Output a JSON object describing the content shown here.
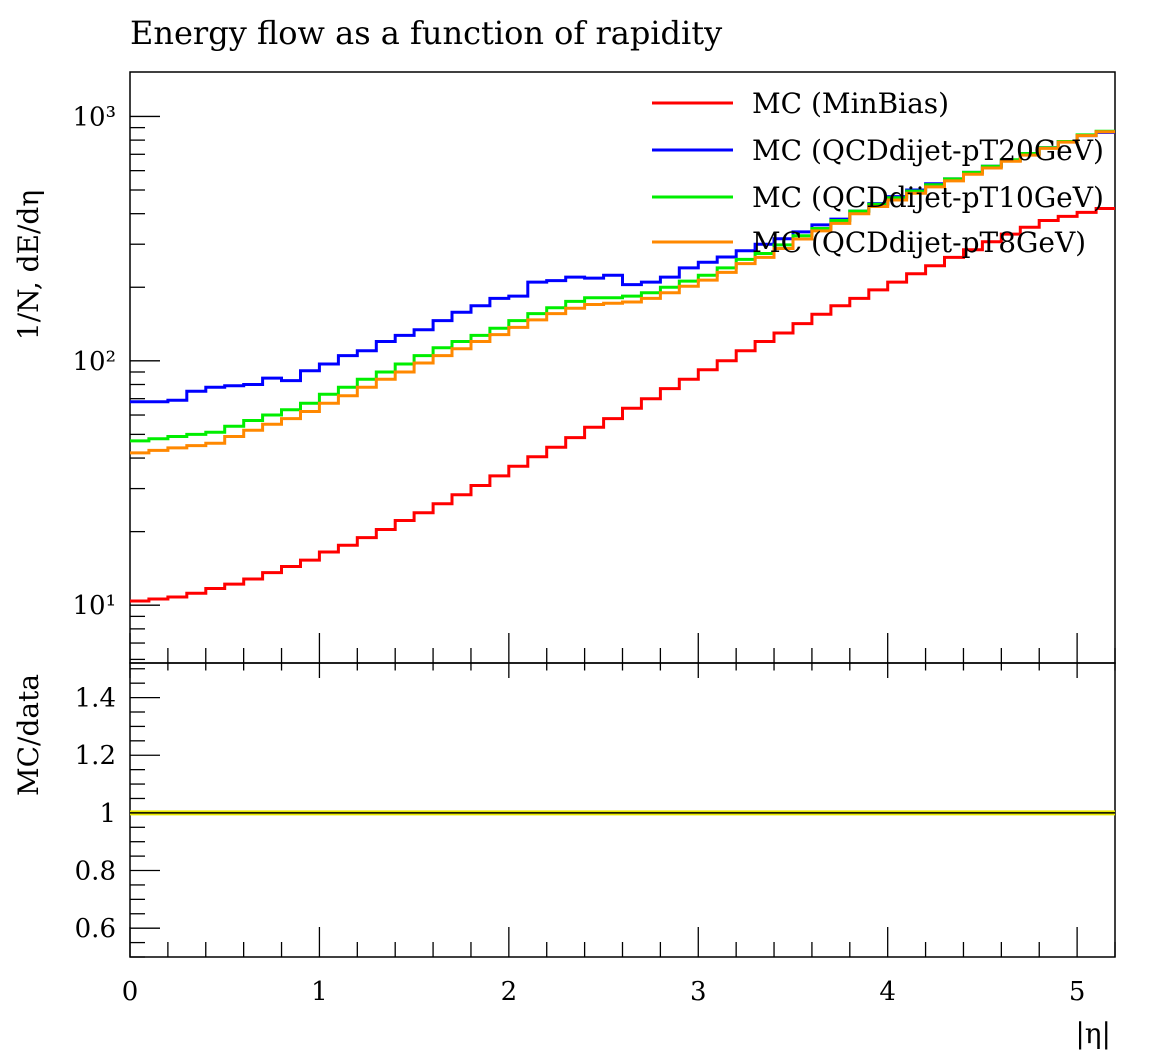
{
  "chart_data": {
    "type": "line",
    "title": "Energy flow as a function of rapidity",
    "main_panel": {
      "ylabel": "1/N, dE/dη",
      "yscale": "log",
      "ylim": [
        5.8,
        1520
      ],
      "ytick_labels": [
        "10¹",
        "10²",
        "10³"
      ],
      "ytick_values": [
        10,
        100,
        1000
      ]
    },
    "ratio_panel": {
      "ylabel": "MC/data",
      "ylim": [
        0.5,
        1.52
      ],
      "ytick_labels": [
        "0.6",
        "0.8",
        "1",
        "1.2",
        "1.4"
      ],
      "ytick_values": [
        0.6,
        0.8,
        1.0,
        1.2,
        1.4
      ],
      "band_value": 1.0,
      "band_color": "#e8e800"
    },
    "xlabel": "|η|",
    "xlim": [
      0,
      5.2
    ],
    "xtick_labels": [
      "0",
      "1",
      "2",
      "3",
      "4",
      "5"
    ],
    "xtick_values": [
      0,
      1,
      2,
      3,
      4,
      5
    ],
    "bin_width": 0.1,
    "legend_position": "top-right",
    "series": [
      {
        "name": "MC (MinBias)",
        "color": "#ff0000",
        "values": [
          10.4,
          10.6,
          10.8,
          11.2,
          11.7,
          12.2,
          12.8,
          13.6,
          14.4,
          15.3,
          16.5,
          17.6,
          18.9,
          20.4,
          22.2,
          23.9,
          26.0,
          28.3,
          30.9,
          33.8,
          37.0,
          40.5,
          44.3,
          48.5,
          53.5,
          58.0,
          64.0,
          70.0,
          77.0,
          84.0,
          92.0,
          100,
          110,
          120,
          130,
          142,
          155,
          168,
          180,
          195,
          210,
          227,
          245,
          265,
          285,
          307,
          330,
          352,
          375,
          390,
          405,
          420
        ]
      },
      {
        "name": "MC (QCDdijet-pT20GeV)",
        "color": "#0000ff",
        "values": [
          68,
          68,
          69,
          75,
          78,
          79,
          80,
          85,
          83,
          91,
          97,
          105,
          110,
          120,
          127,
          134,
          146,
          158,
          168,
          180,
          184,
          210,
          213,
          220,
          218,
          224,
          205,
          210,
          220,
          240,
          253,
          266,
          282,
          300,
          316,
          337,
          360,
          380,
          410,
          440,
          470,
          500,
          530,
          555,
          590,
          625,
          660,
          700,
          745,
          790,
          835,
          860
        ]
      },
      {
        "name": "MC (QCDdijet-pT10GeV)",
        "color": "#00ee00",
        "values": [
          47,
          48,
          49,
          50,
          51,
          54,
          57,
          60,
          63,
          67,
          73,
          78,
          84,
          90,
          97,
          105,
          113,
          120,
          127,
          136,
          146,
          156,
          165,
          175,
          181,
          181,
          184,
          190,
          200,
          212,
          224,
          240,
          260,
          275,
          298,
          325,
          348,
          375,
          410,
          437,
          465,
          495,
          525,
          555,
          590,
          625,
          665,
          705,
          745,
          790,
          840,
          870
        ]
      },
      {
        "name": "MC (QCDdijet-pT8GeV)",
        "color": "#ff8800",
        "values": [
          42,
          43,
          44,
          45,
          46,
          49,
          52,
          55,
          58,
          62,
          67,
          72,
          78,
          84,
          90,
          98,
          105,
          112,
          120,
          128,
          137,
          147,
          156,
          164,
          170,
          172,
          174,
          180,
          190,
          202,
          214,
          230,
          250,
          265,
          288,
          315,
          340,
          365,
          400,
          428,
          455,
          485,
          515,
          545,
          580,
          615,
          655,
          695,
          740,
          785,
          835,
          865
        ]
      }
    ]
  }
}
